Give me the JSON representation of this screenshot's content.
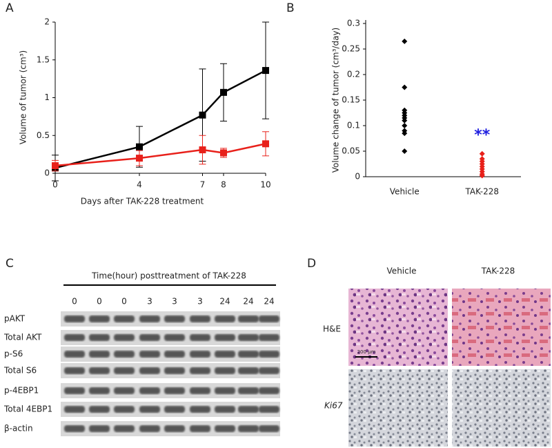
{
  "chart_data": [
    {
      "type": "line",
      "panel": "A",
      "x_label": "Days after TAK-228 treatment",
      "y_label": "Volume of tumor  (cm³)",
      "x": [
        0,
        4,
        7,
        8,
        10
      ],
      "xlim": [
        0,
        10
      ],
      "xticks": [
        0,
        4,
        7,
        8,
        10
      ],
      "ylim": [
        0,
        2
      ],
      "yticks": [
        0,
        0.5,
        1,
        1.5,
        2
      ],
      "series": [
        {
          "color": "#000000",
          "marker": "square",
          "values": [
            0.07,
            0.35,
            0.77,
            1.07,
            1.36
          ],
          "errors": [
            0.17,
            0.27,
            0.61,
            0.38,
            0.64
          ]
        },
        {
          "color": "#e8201a",
          "marker": "square",
          "values": [
            0.1,
            0.2,
            0.31,
            0.27,
            0.39
          ],
          "errors": [
            0.07,
            0.1,
            0.19,
            0.06,
            0.16
          ]
        }
      ]
    },
    {
      "type": "strip",
      "panel": "B",
      "y_label": "Volume change of tumor  (cm³/day)",
      "categories": [
        "Vehicle",
        "TAK-228"
      ],
      "ylim": [
        0,
        0.3
      ],
      "yticks": [
        0,
        0.05,
        0.1,
        0.15,
        0.2,
        0.25,
        0.3
      ],
      "annotation": {
        "text": "**",
        "color": "#2020e0"
      },
      "series": [
        {
          "color": "#000000",
          "values": [
            0.265,
            0.175,
            0.13,
            0.125,
            0.12,
            0.115,
            0.11,
            0.1,
            0.09,
            0.085,
            0.05
          ]
        },
        {
          "color": "#e8201a",
          "values": [
            0.045,
            0.035,
            0.03,
            0.025,
            0.02,
            0.015,
            0.01,
            0.005,
            0.002
          ]
        }
      ]
    }
  ],
  "western_blot": {
    "panel": "C",
    "title": "Time(hour) posttreatment of TAK-228",
    "time_points": [
      "0",
      "0",
      "0",
      "3",
      "3",
      "3",
      "24",
      "24",
      "24"
    ],
    "proteins": [
      "pAKT",
      "Total AKT",
      "p-S6",
      "Total S6",
      "p-4EBP1",
      "Total 4EBP1",
      "β-actin"
    ]
  },
  "histology": {
    "panel": "D",
    "columns": [
      "Vehicle",
      "TAK-228"
    ],
    "rows": [
      "H&E",
      "Ki67"
    ],
    "scale_bar": "200 µm"
  }
}
